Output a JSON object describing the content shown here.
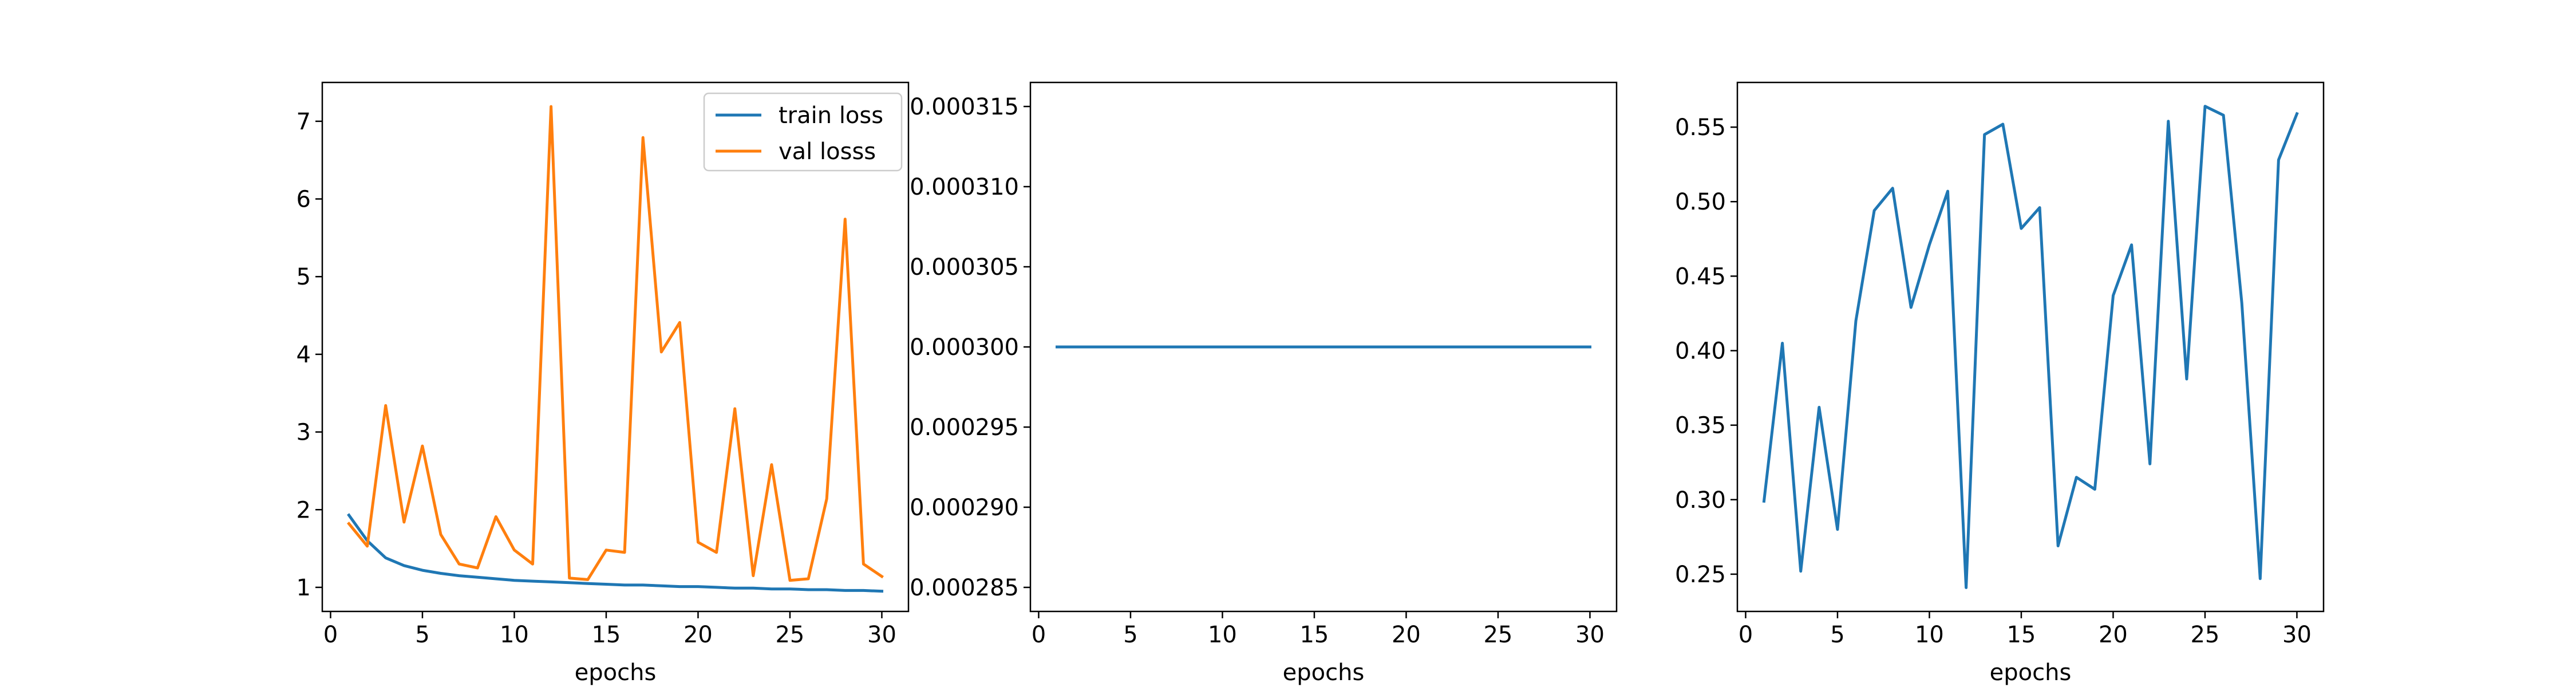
{
  "colors": {
    "train": "#1f77b4",
    "val": "#ff7f0e",
    "frame": "#000000",
    "legend_border": "#cccccc"
  },
  "chart_data": [
    {
      "type": "line",
      "xlabel": "epochs",
      "ylabel": "",
      "xlim": [
        -0.45,
        31.45
      ],
      "ylim": [
        0.69,
        7.5
      ],
      "xticks": [
        0,
        5,
        10,
        15,
        20,
        25,
        30
      ],
      "yticks": [
        1,
        2,
        3,
        4,
        5,
        6,
        7
      ],
      "ytick_labels": [
        "1",
        "2",
        "3",
        "4",
        "5",
        "6",
        "7"
      ],
      "legend": "top-right",
      "grid": false,
      "x": [
        1,
        2,
        3,
        4,
        5,
        6,
        7,
        8,
        9,
        10,
        11,
        12,
        13,
        14,
        15,
        16,
        17,
        18,
        19,
        20,
        21,
        22,
        23,
        24,
        25,
        26,
        27,
        28,
        29,
        30
      ],
      "series": [
        {
          "name": "train loss",
          "color": "#1f77b4",
          "values": [
            1.93,
            1.6,
            1.38,
            1.28,
            1.22,
            1.18,
            1.15,
            1.13,
            1.11,
            1.09,
            1.08,
            1.07,
            1.06,
            1.05,
            1.04,
            1.03,
            1.03,
            1.02,
            1.01,
            1.01,
            1.0,
            0.99,
            0.99,
            0.98,
            0.98,
            0.97,
            0.97,
            0.96,
            0.96,
            0.95
          ]
        },
        {
          "name": "val losss",
          "color": "#ff7f0e",
          "values": [
            1.82,
            1.53,
            3.34,
            1.84,
            2.82,
            1.68,
            1.3,
            1.25,
            1.91,
            1.48,
            1.3,
            7.19,
            1.12,
            1.1,
            1.48,
            1.45,
            6.79,
            4.03,
            4.41,
            1.58,
            1.45,
            3.3,
            1.15,
            2.58,
            1.09,
            1.11,
            2.14,
            5.74,
            1.3,
            1.14
          ]
        }
      ]
    },
    {
      "type": "line",
      "xlabel": "epochs",
      "ylabel": "",
      "xlim": [
        -0.45,
        31.45
      ],
      "ylim": [
        0.0002835,
        0.0003165
      ],
      "xticks": [
        0,
        5,
        10,
        15,
        20,
        25,
        30
      ],
      "yticks": [
        0.000285,
        0.00029,
        0.000295,
        0.0003,
        0.000305,
        0.00031,
        0.000315
      ],
      "ytick_labels": [
        "0.000285",
        "0.000290",
        "0.000295",
        "0.000300",
        "0.000305",
        "0.000310",
        "0.000315"
      ],
      "legend": "none",
      "grid": false,
      "x": [
        1,
        2,
        3,
        4,
        5,
        6,
        7,
        8,
        9,
        10,
        11,
        12,
        13,
        14,
        15,
        16,
        17,
        18,
        19,
        20,
        21,
        22,
        23,
        24,
        25,
        26,
        27,
        28,
        29,
        30
      ],
      "series": [
        {
          "color": "#1f77b4",
          "values": [
            0.0003,
            0.0003,
            0.0003,
            0.0003,
            0.0003,
            0.0003,
            0.0003,
            0.0003,
            0.0003,
            0.0003,
            0.0003,
            0.0003,
            0.0003,
            0.0003,
            0.0003,
            0.0003,
            0.0003,
            0.0003,
            0.0003,
            0.0003,
            0.0003,
            0.0003,
            0.0003,
            0.0003,
            0.0003,
            0.0003,
            0.0003,
            0.0003,
            0.0003,
            0.0003
          ]
        }
      ]
    },
    {
      "type": "line",
      "xlabel": "epochs",
      "ylabel": "",
      "xlim": [
        -0.45,
        31.45
      ],
      "ylim": [
        0.225,
        0.58
      ],
      "xticks": [
        0,
        5,
        10,
        15,
        20,
        25,
        30
      ],
      "yticks": [
        0.25,
        0.3,
        0.35,
        0.4,
        0.45,
        0.5,
        0.55
      ],
      "ytick_labels": [
        "0.25",
        "0.30",
        "0.35",
        "0.40",
        "0.45",
        "0.50",
        "0.55"
      ],
      "legend": "none",
      "grid": false,
      "x": [
        1,
        2,
        3,
        4,
        5,
        6,
        7,
        8,
        9,
        10,
        11,
        12,
        13,
        14,
        15,
        16,
        17,
        18,
        19,
        20,
        21,
        22,
        23,
        24,
        25,
        26,
        27,
        28,
        29,
        30
      ],
      "series": [
        {
          "color": "#1f77b4",
          "values": [
            0.299,
            0.405,
            0.252,
            0.362,
            0.28,
            0.42,
            0.494,
            0.509,
            0.429,
            0.471,
            0.507,
            0.241,
            0.545,
            0.552,
            0.482,
            0.496,
            0.269,
            0.315,
            0.307,
            0.437,
            0.471,
            0.324,
            0.554,
            0.381,
            0.564,
            0.558,
            0.432,
            0.247,
            0.528,
            0.559
          ]
        }
      ]
    }
  ]
}
